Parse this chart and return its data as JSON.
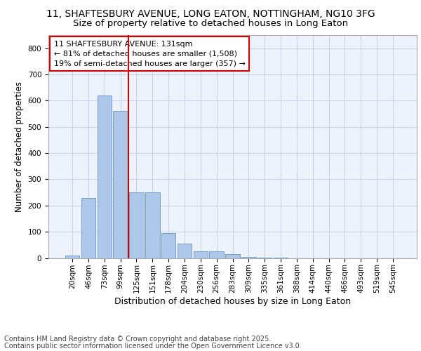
{
  "title_line1": "11, SHAFTESBURY AVENUE, LONG EATON, NOTTINGHAM, NG10 3FG",
  "title_line2": "Size of property relative to detached houses in Long Eaton",
  "xlabel": "Distribution of detached houses by size in Long Eaton",
  "ylabel": "Number of detached properties",
  "categories": [
    "20sqm",
    "46sqm",
    "73sqm",
    "99sqm",
    "125sqm",
    "151sqm",
    "178sqm",
    "204sqm",
    "230sqm",
    "256sqm",
    "283sqm",
    "309sqm",
    "335sqm",
    "361sqm",
    "388sqm",
    "414sqm",
    "440sqm",
    "466sqm",
    "493sqm",
    "519sqm",
    "545sqm"
  ],
  "values": [
    10,
    230,
    620,
    560,
    250,
    250,
    95,
    55,
    25,
    25,
    15,
    5,
    2,
    1,
    0,
    0,
    0,
    0,
    0,
    0,
    0
  ],
  "bar_color": "#aec6e8",
  "bar_edge_color": "#6699cc",
  "highlight_line_color": "#cc0000",
  "highlight_bar_index": 4,
  "annotation_text": "11 SHAFTESBURY AVENUE: 131sqm\n← 81% of detached houses are smaller (1,508)\n19% of semi-detached houses are larger (357) →",
  "annotation_box_edgecolor": "#cc0000",
  "ylim": [
    0,
    850
  ],
  "yticks": [
    0,
    100,
    200,
    300,
    400,
    500,
    600,
    700,
    800
  ],
  "background_color": "#eef2fb",
  "grid_color": "#c8d4ea",
  "footer_line1": "Contains HM Land Registry data © Crown copyright and database right 2025.",
  "footer_line2": "Contains public sector information licensed under the Open Government Licence v3.0.",
  "title1_fontsize": 10,
  "title2_fontsize": 9.5,
  "axis_label_fontsize": 8.5,
  "tick_fontsize": 7.5,
  "annotation_fontsize": 8,
  "footer_fontsize": 7
}
